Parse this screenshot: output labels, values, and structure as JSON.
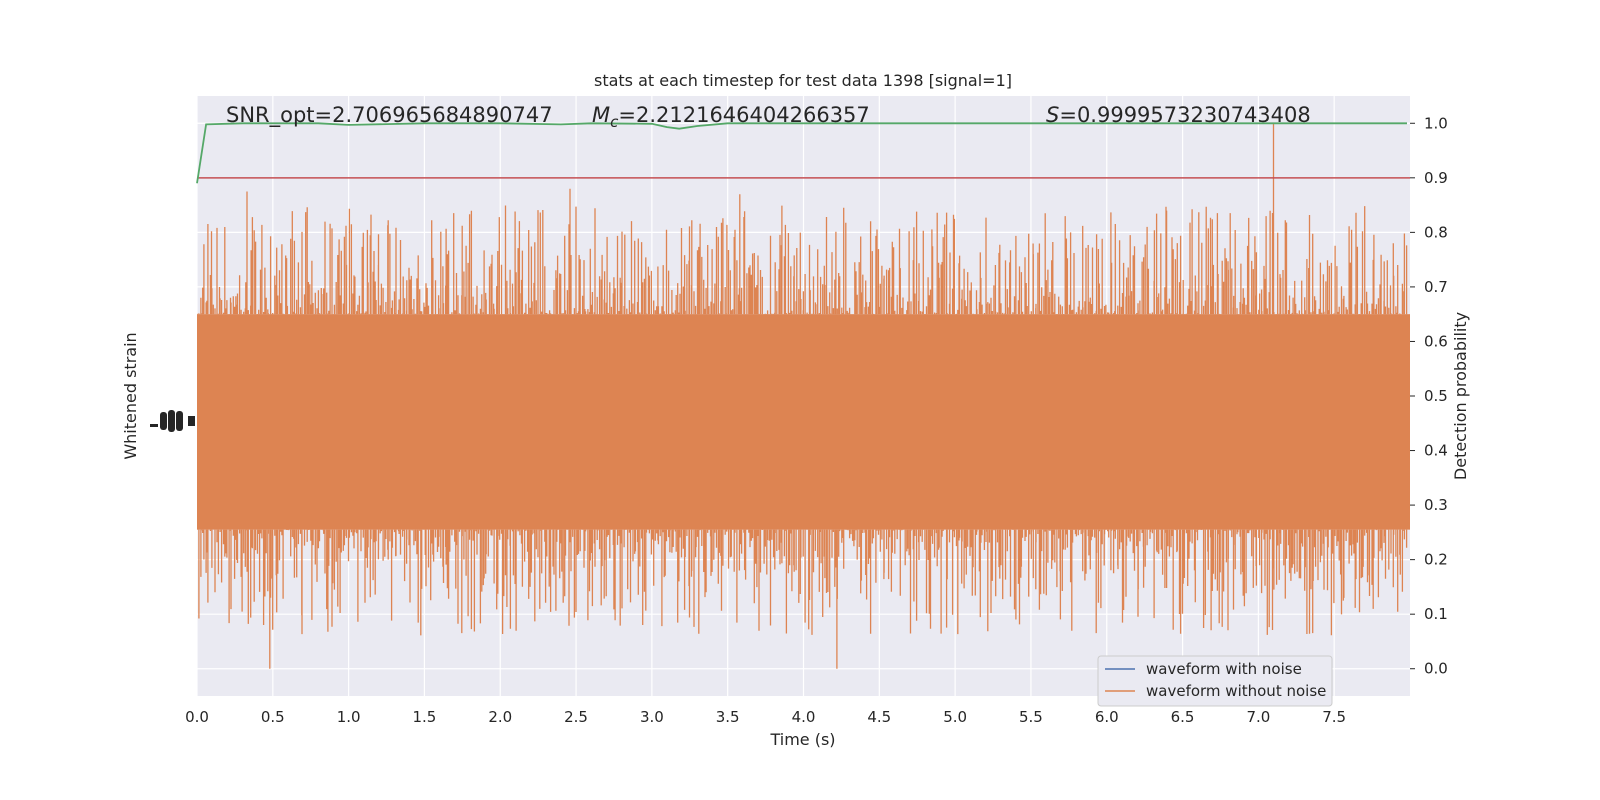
{
  "chart_data": {
    "type": "line",
    "title": "stats at each timestep for test data 1398 [signal=1]",
    "xlabel": "Time (s)",
    "ylabel_left": "Whitened strain",
    "ylabel_right": "Detection probability",
    "xlim": [
      0,
      8
    ],
    "ylim_right": [
      -0.05,
      1.05
    ],
    "x_ticks": [
      0.0,
      0.5,
      1.0,
      1.5,
      2.0,
      2.5,
      3.0,
      3.5,
      4.0,
      4.5,
      5.0,
      5.5,
      6.0,
      6.5,
      7.0,
      7.5
    ],
    "x_tick_labels": [
      "0.0",
      "0.5",
      "1.0",
      "1.5",
      "2.0",
      "2.5",
      "3.0",
      "3.5",
      "4.0",
      "4.5",
      "5.0",
      "5.5",
      "6.0",
      "6.5",
      "7.0",
      "7.5"
    ],
    "y_ticks_right": [
      0.0,
      0.1,
      0.2,
      0.3,
      0.4,
      0.5,
      0.6,
      0.7,
      0.8,
      0.9,
      1.0
    ],
    "y_tick_labels_right": [
      "0.0",
      "0.1",
      "0.2",
      "0.3",
      "0.4",
      "0.5",
      "0.6",
      "0.7",
      "0.8",
      "0.9",
      "1.0"
    ],
    "grid": true,
    "legend_position": "bottom-right",
    "annotations": {
      "snr": "SNR_opt=2.706965684890747",
      "mc_symbol": "M",
      "mc_sub": "c",
      "mc_value": "=2.2121646404266357",
      "s_symbol": "S",
      "s_value": "=0.9999573230743408"
    },
    "series": [
      {
        "name": "waveform with noise",
        "color": "#4c72b0"
      },
      {
        "name": "waveform without noise",
        "color": "#dd8452"
      }
    ],
    "threshold": {
      "value": 0.9,
      "color": "#c44e52"
    },
    "detection_probability": {
      "color": "#55a868",
      "x": [
        0.0,
        0.06,
        0.3,
        0.8,
        1.0,
        1.5,
        2.0,
        2.4,
        2.6,
        3.0,
        3.1,
        3.18,
        3.3,
        3.5,
        4.0,
        4.5,
        5.0,
        6.0,
        7.0,
        7.98
      ],
      "y": [
        0.89,
        0.998,
        1.0,
        1.0,
        0.997,
        1.0,
        1.0,
        0.998,
        1.0,
        0.999,
        0.993,
        0.99,
        0.995,
        1.0,
        1.0,
        1.0,
        1.0,
        1.0,
        1.0,
        1.0
      ]
    },
    "strain_envelope": {
      "dense_band": [
        0.255,
        0.65
      ],
      "typical_upper_peaks": [
        0.7,
        0.85
      ],
      "typical_lower_peaks": [
        0.06,
        0.25
      ],
      "notable_peaks": [
        {
          "x": 0.33,
          "y": 0.875
        },
        {
          "x": 2.46,
          "y": 0.88
        },
        {
          "x": 3.58,
          "y": 0.87
        },
        {
          "x": 7.1,
          "y": 1.0
        },
        {
          "x": 0.48,
          "y": 0.0
        },
        {
          "x": 4.22,
          "y": -0.0
        }
      ]
    }
  }
}
